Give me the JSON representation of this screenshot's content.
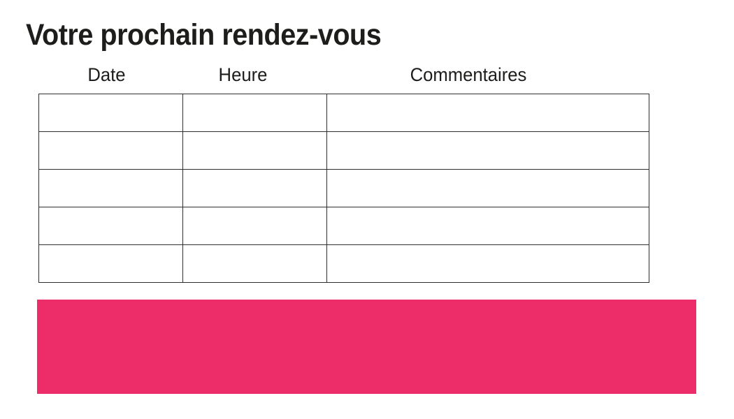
{
  "title": "Votre prochain rendez-vous",
  "table": {
    "headers": [
      "Date",
      "Heure",
      "Commentaires"
    ],
    "rows": [
      [
        "",
        "",
        ""
      ],
      [
        "",
        "",
        ""
      ],
      [
        "",
        "",
        ""
      ],
      [
        "",
        "",
        ""
      ],
      [
        "",
        "",
        ""
      ]
    ]
  },
  "banner": {
    "text": ""
  },
  "colors": {
    "banner": "#ed2c6a",
    "text": "#1d1d1b",
    "table_border": "#2e2e2e",
    "background": "#ffffff"
  }
}
